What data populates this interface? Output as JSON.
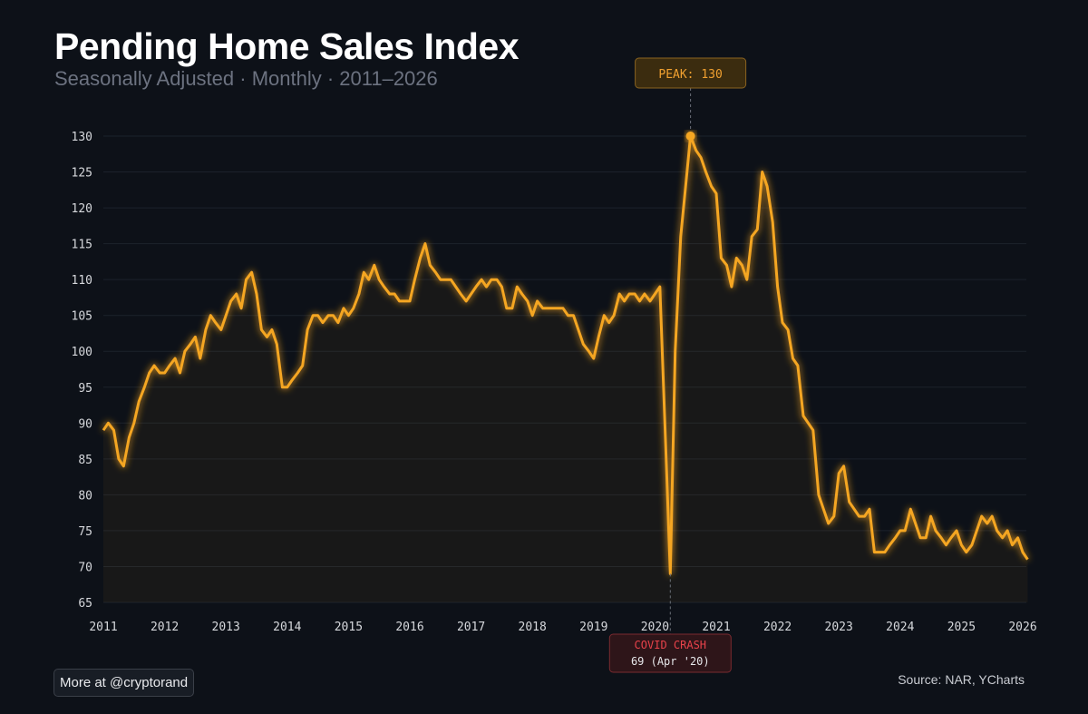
{
  "header": {
    "title": "Pending Home Sales Index",
    "subtitle": "Seasonally Adjusted · Monthly · 2011–2026"
  },
  "footer": {
    "credit": "More at @cryptorand",
    "source": "Source: NAR, YCharts"
  },
  "colors": {
    "background": "#0d1118",
    "line": "#f5a623",
    "grid": "#1c222b",
    "peak_text": "#f0a030",
    "crash_text": "#e8424a"
  },
  "chart_data": {
    "type": "line",
    "title": "Pending Home Sales Index",
    "xlabel": "",
    "ylabel": "",
    "xlim": [
      2011,
      2026
    ],
    "ylim": [
      65,
      130
    ],
    "grid": true,
    "y_ticks": [
      130,
      125,
      120,
      115,
      110,
      105,
      100,
      95,
      90,
      85,
      80,
      75,
      70,
      65
    ],
    "x_ticks": [
      "2011",
      "2012",
      "2013",
      "2014",
      "2015",
      "2016",
      "2017",
      "2018",
      "2019",
      "2020",
      "2021",
      "2022",
      "2023",
      "2024",
      "2025",
      "2026"
    ],
    "series": [
      {
        "name": "Pending Home Sales Index",
        "points": [
          [
            2011.0,
            89
          ],
          [
            2011.08,
            90
          ],
          [
            2011.17,
            89
          ],
          [
            2011.25,
            85
          ],
          [
            2011.33,
            84
          ],
          [
            2011.42,
            88
          ],
          [
            2011.5,
            90
          ],
          [
            2011.58,
            93
          ],
          [
            2011.67,
            95
          ],
          [
            2011.75,
            97
          ],
          [
            2011.83,
            98
          ],
          [
            2011.92,
            97
          ],
          [
            2012.0,
            97
          ],
          [
            2012.08,
            98
          ],
          [
            2012.17,
            99
          ],
          [
            2012.25,
            97
          ],
          [
            2012.33,
            100
          ],
          [
            2012.42,
            101
          ],
          [
            2012.5,
            102
          ],
          [
            2012.58,
            99
          ],
          [
            2012.67,
            103
          ],
          [
            2012.75,
            105
          ],
          [
            2012.83,
            104
          ],
          [
            2012.92,
            103
          ],
          [
            2013.0,
            105
          ],
          [
            2013.08,
            107
          ],
          [
            2013.17,
            108
          ],
          [
            2013.25,
            106
          ],
          [
            2013.33,
            110
          ],
          [
            2013.42,
            111
          ],
          [
            2013.5,
            108
          ],
          [
            2013.58,
            103
          ],
          [
            2013.67,
            102
          ],
          [
            2013.75,
            103
          ],
          [
            2013.83,
            101
          ],
          [
            2013.92,
            95
          ],
          [
            2014.0,
            95
          ],
          [
            2014.08,
            96
          ],
          [
            2014.17,
            97
          ],
          [
            2014.25,
            98
          ],
          [
            2014.33,
            103
          ],
          [
            2014.42,
            105
          ],
          [
            2014.5,
            105
          ],
          [
            2014.58,
            104
          ],
          [
            2014.67,
            105
          ],
          [
            2014.75,
            105
          ],
          [
            2014.83,
            104
          ],
          [
            2014.92,
            106
          ],
          [
            2015.0,
            105
          ],
          [
            2015.08,
            106
          ],
          [
            2015.17,
            108
          ],
          [
            2015.25,
            111
          ],
          [
            2015.33,
            110
          ],
          [
            2015.42,
            112
          ],
          [
            2015.5,
            110
          ],
          [
            2015.58,
            109
          ],
          [
            2015.67,
            108
          ],
          [
            2015.75,
            108
          ],
          [
            2015.83,
            107
          ],
          [
            2015.92,
            107
          ],
          [
            2016.0,
            107
          ],
          [
            2016.08,
            110
          ],
          [
            2016.17,
            113
          ],
          [
            2016.25,
            115
          ],
          [
            2016.33,
            112
          ],
          [
            2016.42,
            111
          ],
          [
            2016.5,
            110
          ],
          [
            2016.58,
            110
          ],
          [
            2016.67,
            110
          ],
          [
            2016.75,
            109
          ],
          [
            2016.83,
            108
          ],
          [
            2016.92,
            107
          ],
          [
            2017.0,
            108
          ],
          [
            2017.08,
            109
          ],
          [
            2017.17,
            110
          ],
          [
            2017.25,
            109
          ],
          [
            2017.33,
            110
          ],
          [
            2017.42,
            110
          ],
          [
            2017.5,
            109
          ],
          [
            2017.58,
            106
          ],
          [
            2017.67,
            106
          ],
          [
            2017.75,
            109
          ],
          [
            2017.83,
            108
          ],
          [
            2017.92,
            107
          ],
          [
            2018.0,
            105
          ],
          [
            2018.08,
            107
          ],
          [
            2018.17,
            106
          ],
          [
            2018.25,
            106
          ],
          [
            2018.33,
            106
          ],
          [
            2018.42,
            106
          ],
          [
            2018.5,
            106
          ],
          [
            2018.58,
            105
          ],
          [
            2018.67,
            105
          ],
          [
            2018.75,
            103
          ],
          [
            2018.83,
            101
          ],
          [
            2018.92,
            100
          ],
          [
            2019.0,
            99
          ],
          [
            2019.08,
            102
          ],
          [
            2019.17,
            105
          ],
          [
            2019.25,
            104
          ],
          [
            2019.33,
            105
          ],
          [
            2019.42,
            108
          ],
          [
            2019.5,
            107
          ],
          [
            2019.58,
            108
          ],
          [
            2019.67,
            108
          ],
          [
            2019.75,
            107
          ],
          [
            2019.83,
            108
          ],
          [
            2019.92,
            107
          ],
          [
            2020.0,
            108
          ],
          [
            2020.08,
            109
          ],
          [
            2020.17,
            88
          ],
          [
            2020.25,
            69
          ],
          [
            2020.33,
            100
          ],
          [
            2020.42,
            116
          ],
          [
            2020.5,
            123
          ],
          [
            2020.58,
            130
          ],
          [
            2020.67,
            128
          ],
          [
            2020.75,
            127
          ],
          [
            2020.83,
            125
          ],
          [
            2020.92,
            123
          ],
          [
            2021.0,
            122
          ],
          [
            2021.08,
            113
          ],
          [
            2021.17,
            112
          ],
          [
            2021.25,
            109
          ],
          [
            2021.33,
            113
          ],
          [
            2021.42,
            112
          ],
          [
            2021.5,
            110
          ],
          [
            2021.58,
            116
          ],
          [
            2021.67,
            117
          ],
          [
            2021.75,
            125
          ],
          [
            2021.83,
            123
          ],
          [
            2021.92,
            118
          ],
          [
            2022.0,
            109
          ],
          [
            2022.08,
            104
          ],
          [
            2022.17,
            103
          ],
          [
            2022.25,
            99
          ],
          [
            2022.33,
            98
          ],
          [
            2022.42,
            91
          ],
          [
            2022.5,
            90
          ],
          [
            2022.58,
            89
          ],
          [
            2022.67,
            80
          ],
          [
            2022.75,
            78
          ],
          [
            2022.83,
            76
          ],
          [
            2022.92,
            77
          ],
          [
            2023.0,
            83
          ],
          [
            2023.08,
            84
          ],
          [
            2023.17,
            79
          ],
          [
            2023.25,
            78
          ],
          [
            2023.33,
            77
          ],
          [
            2023.42,
            77
          ],
          [
            2023.5,
            78
          ],
          [
            2023.58,
            72
          ],
          [
            2023.67,
            72
          ],
          [
            2023.75,
            72
          ],
          [
            2023.83,
            73
          ],
          [
            2023.92,
            74
          ],
          [
            2024.0,
            75
          ],
          [
            2024.08,
            75
          ],
          [
            2024.17,
            78
          ],
          [
            2024.25,
            76
          ],
          [
            2024.33,
            74
          ],
          [
            2024.42,
            74
          ],
          [
            2024.5,
            77
          ],
          [
            2024.58,
            75
          ],
          [
            2024.67,
            74
          ],
          [
            2024.75,
            73
          ],
          [
            2024.83,
            74
          ],
          [
            2024.92,
            75
          ],
          [
            2025.0,
            73
          ],
          [
            2025.08,
            72
          ],
          [
            2025.17,
            73
          ],
          [
            2025.25,
            75
          ],
          [
            2025.33,
            77
          ],
          [
            2025.42,
            76
          ],
          [
            2025.5,
            77
          ],
          [
            2025.58,
            75
          ],
          [
            2025.67,
            74
          ],
          [
            2025.75,
            75
          ],
          [
            2025.83,
            73
          ],
          [
            2025.92,
            74
          ],
          [
            2026.0,
            72
          ],
          [
            2026.08,
            71
          ]
        ]
      }
    ],
    "annotations": [
      {
        "kind": "peak",
        "label": "PEAK: 130",
        "x": 2020.58,
        "y": 130
      },
      {
        "kind": "trough",
        "label": "COVID CRASH",
        "detail": "69 (Apr '20)",
        "x": 2020.25,
        "y": 69
      }
    ]
  }
}
